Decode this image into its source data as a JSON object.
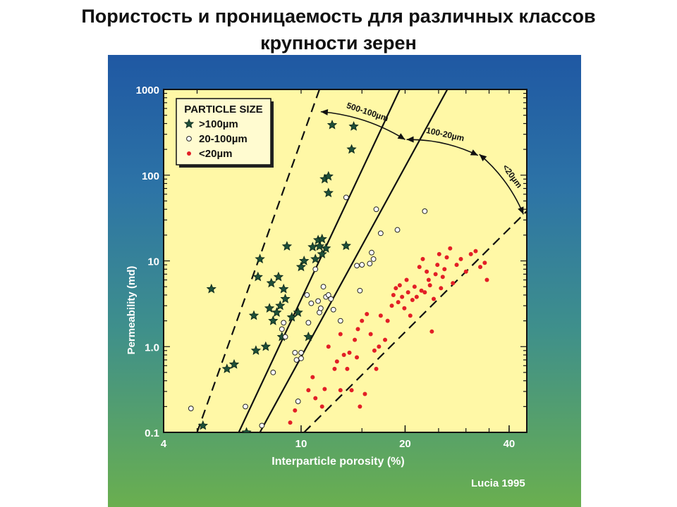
{
  "slide": {
    "title_line1": "Пористость и проницаемость для различных классов",
    "title_line2": "крупности зерен"
  },
  "credit": "Lucia 1995",
  "chart_data": {
    "type": "scatter",
    "xlabel": "Interparticle porosity (%)",
    "ylabel": "Permeability (md)",
    "x_scale": "log",
    "y_scale": "log",
    "xlim": [
      4,
      45
    ],
    "ylim": [
      0.1,
      1000
    ],
    "x_ticks": [
      4,
      10,
      20,
      40
    ],
    "y_ticks": [
      {
        "v": 1000,
        "label": "1000"
      },
      {
        "v": 100,
        "label": "100"
      },
      {
        "v": 10,
        "label": "10"
      },
      {
        "v": 1,
        "label": "1.0"
      },
      {
        "v": 0.1,
        "label": "0.1"
      }
    ],
    "legend": {
      "title": "PARTICLE SIZE",
      "placement": "top-left"
    },
    "colors": {
      "plot_bg": "#fff8a6",
      "coarse": "#1e4f38",
      "medium": "#ffffff",
      "fine": "#e21f26",
      "lines": "#111111"
    },
    "series": [
      {
        "name": ">100µm",
        "marker": "star",
        "points": [
          [
            5.2,
            0.12
          ],
          [
            5.5,
            4.7
          ],
          [
            6.1,
            0.55
          ],
          [
            6.4,
            0.62
          ],
          [
            6.95,
            0.1
          ],
          [
            7.3,
            2.3
          ],
          [
            7.4,
            0.9
          ],
          [
            7.5,
            6.5
          ],
          [
            7.6,
            10.5
          ],
          [
            7.9,
            1.0
          ],
          [
            8.1,
            2.8
          ],
          [
            8.2,
            5.5
          ],
          [
            8.3,
            2.0
          ],
          [
            8.5,
            2.5
          ],
          [
            8.6,
            6.5
          ],
          [
            8.7,
            3.0
          ],
          [
            8.8,
            1.3
          ],
          [
            8.9,
            4.7
          ],
          [
            9.0,
            3.6
          ],
          [
            9.1,
            14.8
          ],
          [
            9.4,
            2.2
          ],
          [
            9.8,
            2.5
          ],
          [
            10.0,
            8.5
          ],
          [
            10.2,
            10.0
          ],
          [
            10.5,
            1.3
          ],
          [
            10.8,
            14.5
          ],
          [
            11.0,
            10.5
          ],
          [
            11.2,
            17.5
          ],
          [
            11.3,
            14.8
          ],
          [
            11.5,
            18.0
          ],
          [
            11.5,
            12.0
          ],
          [
            11.7,
            90
          ],
          [
            11.8,
            14.0
          ],
          [
            12.0,
            97
          ],
          [
            12.0,
            62
          ],
          [
            12.3,
            385
          ],
          [
            13.5,
            15.0
          ],
          [
            14.0,
            200
          ],
          [
            14.2,
            370
          ]
        ]
      },
      {
        "name": "20-100µm",
        "marker": "circle",
        "points": [
          [
            4.8,
            0.19
          ],
          [
            6.9,
            0.2
          ],
          [
            7.7,
            0.12
          ],
          [
            8.3,
            0.5
          ],
          [
            8.8,
            1.6
          ],
          [
            8.9,
            1.9
          ],
          [
            9.0,
            1.3
          ],
          [
            9.6,
            0.85
          ],
          [
            9.7,
            0.7
          ],
          [
            9.8,
            0.23
          ],
          [
            10.0,
            0.85
          ],
          [
            10.0,
            0.73
          ],
          [
            10.4,
            4.0
          ],
          [
            10.5,
            1.9
          ],
          [
            10.7,
            3.2
          ],
          [
            11.0,
            8.0
          ],
          [
            11.2,
            3.4
          ],
          [
            11.3,
            2.5
          ],
          [
            11.4,
            2.8
          ],
          [
            11.6,
            5.0
          ],
          [
            11.8,
            3.8
          ],
          [
            12.0,
            4.0
          ],
          [
            12.2,
            3.6
          ],
          [
            12.4,
            2.7
          ],
          [
            13.0,
            2.0
          ],
          [
            13.5,
            55
          ],
          [
            14.5,
            8.8
          ],
          [
            14.8,
            4.5
          ],
          [
            15.0,
            9.0
          ],
          [
            15.8,
            9.3
          ],
          [
            16.0,
            12.5
          ],
          [
            16.2,
            10.5
          ],
          [
            16.5,
            40
          ],
          [
            17.0,
            21
          ],
          [
            19.0,
            23
          ],
          [
            22.8,
            38
          ]
        ]
      },
      {
        "name": "<20µm",
        "marker": "dot",
        "points": [
          [
            9.3,
            0.13
          ],
          [
            9.6,
            0.18
          ],
          [
            10.5,
            0.31
          ],
          [
            10.8,
            0.44
          ],
          [
            11.0,
            0.25
          ],
          [
            11.5,
            0.2
          ],
          [
            11.7,
            0.32
          ],
          [
            12.0,
            1.0
          ],
          [
            12.5,
            0.55
          ],
          [
            12.7,
            0.67
          ],
          [
            13.0,
            0.31
          ],
          [
            13.0,
            1.4
          ],
          [
            13.3,
            0.8
          ],
          [
            13.6,
            0.55
          ],
          [
            13.8,
            0.85
          ],
          [
            14.0,
            0.31
          ],
          [
            14.3,
            1.2
          ],
          [
            14.5,
            0.75
          ],
          [
            14.6,
            1.6
          ],
          [
            14.8,
            0.2
          ],
          [
            15.0,
            2.0
          ],
          [
            15.3,
            0.28
          ],
          [
            15.5,
            2.4
          ],
          [
            15.9,
            1.4
          ],
          [
            16.3,
            0.9
          ],
          [
            16.5,
            0.55
          ],
          [
            16.8,
            1.0
          ],
          [
            17.0,
            2.3
          ],
          [
            17.5,
            1.2
          ],
          [
            17.8,
            2.0
          ],
          [
            18.3,
            3.0
          ],
          [
            18.5,
            4.0
          ],
          [
            18.8,
            4.8
          ],
          [
            19.1,
            3.3
          ],
          [
            19.3,
            5.2
          ],
          [
            19.6,
            3.8
          ],
          [
            19.9,
            2.8
          ],
          [
            20.2,
            6.0
          ],
          [
            20.4,
            4.3
          ],
          [
            20.7,
            2.3
          ],
          [
            21.0,
            3.5
          ],
          [
            21.3,
            5.0
          ],
          [
            21.6,
            3.8
          ],
          [
            22.0,
            8.5
          ],
          [
            22.3,
            4.5
          ],
          [
            22.5,
            10.5
          ],
          [
            22.8,
            4.3
          ],
          [
            23.1,
            7.5
          ],
          [
            23.4,
            6.0
          ],
          [
            23.6,
            5.2
          ],
          [
            23.9,
            1.5
          ],
          [
            24.2,
            3.6
          ],
          [
            24.5,
            7.0
          ],
          [
            24.8,
            9.0
          ],
          [
            25.1,
            12.0
          ],
          [
            25.4,
            4.8
          ],
          [
            25.7,
            6.5
          ],
          [
            26.0,
            8.0
          ],
          [
            26.4,
            11.0
          ],
          [
            27.0,
            14.0
          ],
          [
            27.5,
            5.5
          ],
          [
            28.2,
            9.0
          ],
          [
            29.0,
            10.5
          ],
          [
            30.0,
            7.5
          ],
          [
            31.0,
            12.0
          ],
          [
            32.0,
            13.0
          ],
          [
            33.0,
            8.5
          ],
          [
            34.0,
            9.5
          ],
          [
            34.5,
            6.0
          ]
        ]
      }
    ],
    "boundary_lines": [
      {
        "label": "",
        "style": "dashed",
        "from": [
          5.0,
          0.1
        ],
        "to": [
          11.3,
          1000
        ]
      },
      {
        "label": "",
        "style": "solid",
        "from": [
          6.6,
          0.1
        ],
        "to": [
          19.3,
          1000
        ]
      },
      {
        "label": "",
        "style": "solid",
        "from": [
          7.6,
          0.1
        ],
        "to": [
          26.5,
          1000
        ]
      },
      {
        "label": "",
        "style": "dashed",
        "from": [
          10.2,
          0.1
        ],
        "to": [
          45,
          38
        ]
      }
    ],
    "range_annotations": [
      {
        "label": "500-100µm",
        "from": [
          11.4,
          550
        ],
        "to": [
          20.0,
          260
        ]
      },
      {
        "label": "100-20µm",
        "from": [
          20.2,
          260
        ],
        "to": [
          32.5,
          170
        ]
      },
      {
        "label": "<20µm",
        "from": [
          32.8,
          175
        ],
        "to": [
          44.0,
          35
        ]
      }
    ]
  }
}
